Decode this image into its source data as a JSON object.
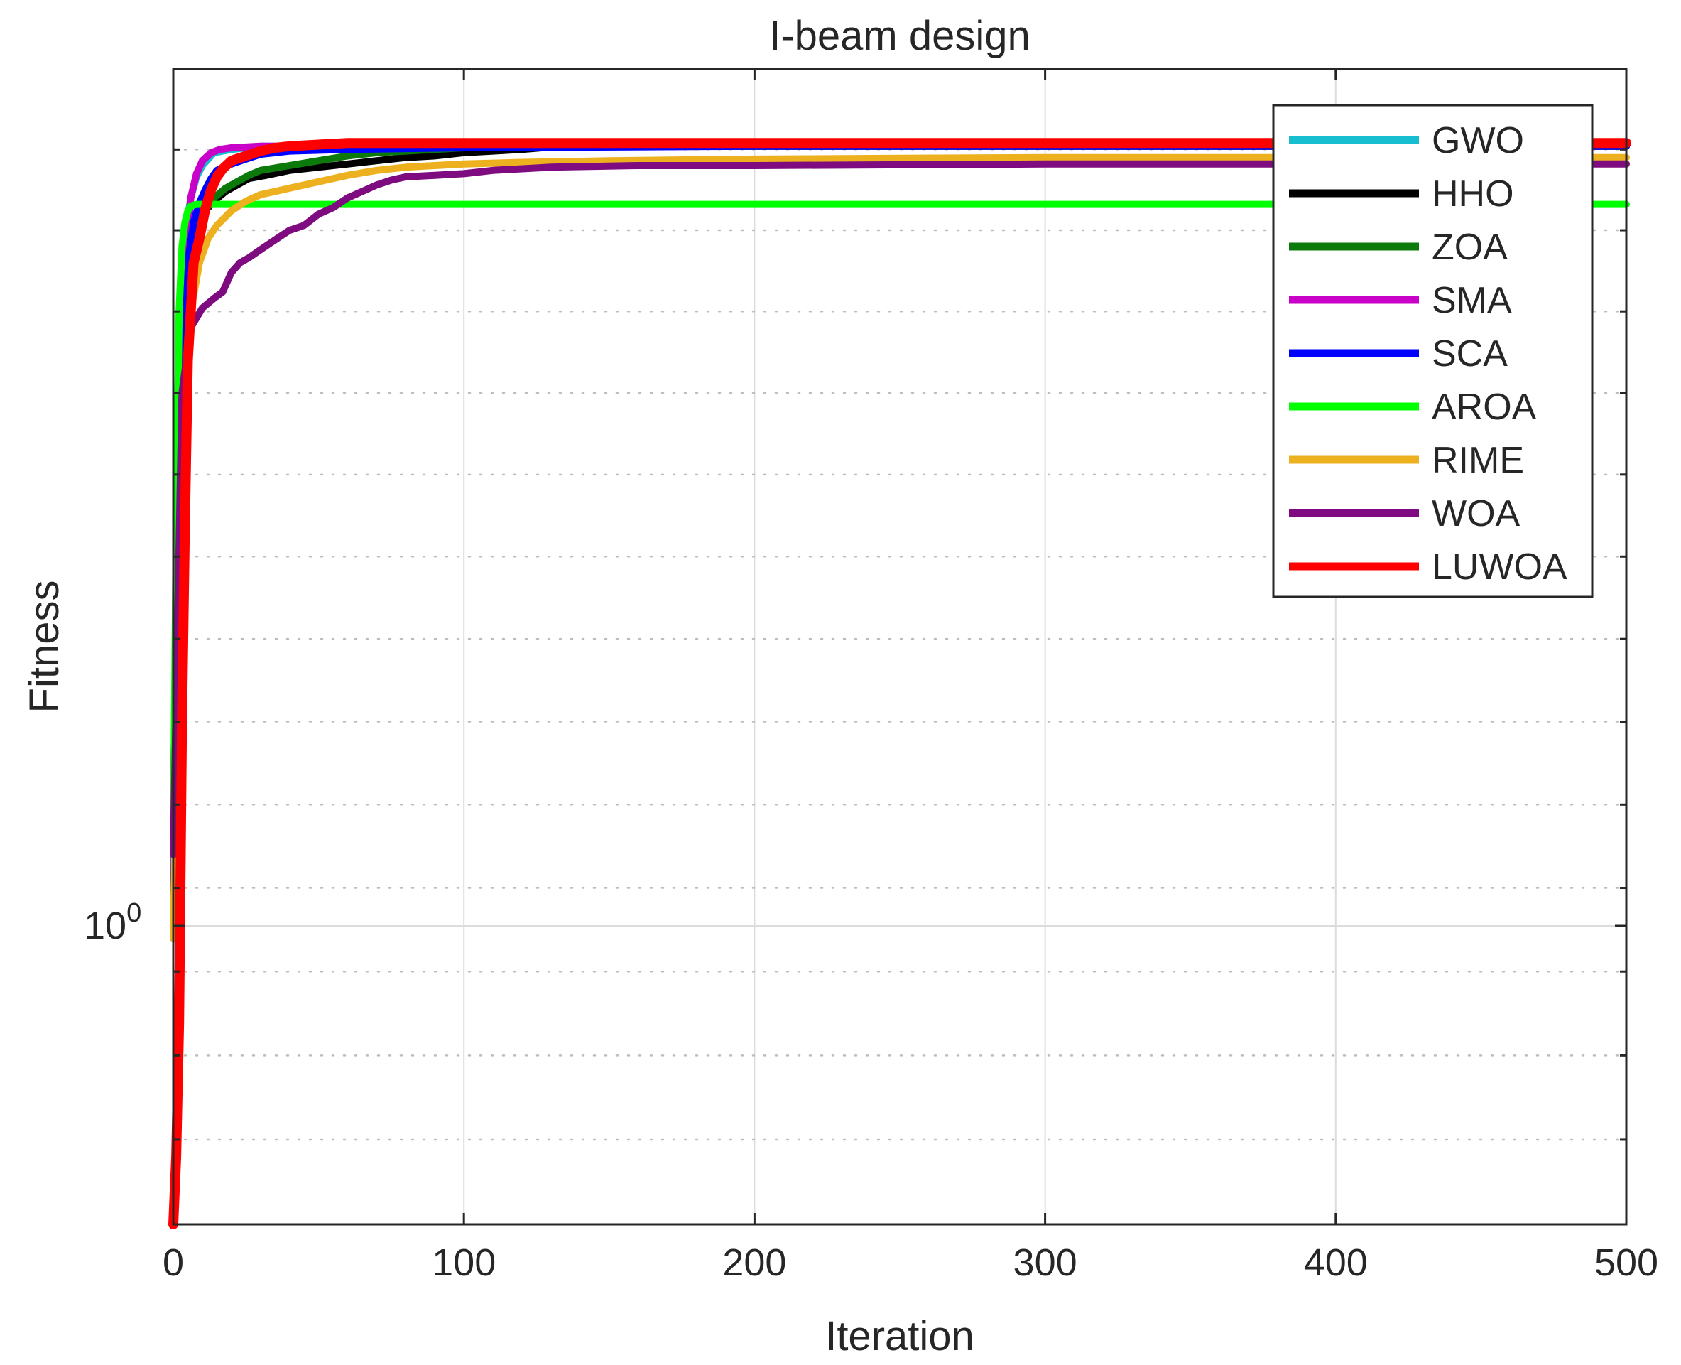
{
  "chart_data": {
    "type": "line",
    "title": "I-beam design",
    "xlabel": "Iteration",
    "ylabel": "Fitness",
    "xlim": [
      0,
      500
    ],
    "ylim": [
      0.0128,
      0.0135
    ],
    "yscale": "log",
    "grid": true,
    "legend_position": "top-right",
    "x_ticks": [
      0,
      100,
      200,
      300,
      400,
      500
    ],
    "x_tick_labels": [
      "0",
      "100",
      "200",
      "300",
      "400",
      "500"
    ],
    "y_tick_labels": [
      {
        "base": "10",
        "exp": "0",
        "value": 1.0
      }
    ],
    "series": [
      {
        "name": "GWO",
        "color": "#17BECF",
        "x": [
          0,
          2,
          4,
          6,
          8,
          10,
          14,
          20,
          30,
          50,
          100,
          200,
          500
        ],
        "y": [
          0.01305,
          0.01325,
          0.013397,
          0.01342,
          0.013433,
          0.01344,
          0.013448,
          0.01345,
          0.013452,
          0.013452,
          0.013453,
          0.013453,
          0.013453
        ]
      },
      {
        "name": "HHO",
        "color": "#000000",
        "x": [
          0,
          3,
          5,
          8,
          10,
          14,
          18,
          22,
          26,
          32,
          40,
          50,
          60,
          70,
          80,
          90,
          100,
          110,
          120,
          133,
          200,
          500
        ],
        "y": [
          0.01297,
          0.0133,
          0.01337,
          0.013395,
          0.01341,
          0.013418,
          0.013424,
          0.013428,
          0.013432,
          0.013434,
          0.013437,
          0.013439,
          0.013441,
          0.013443,
          0.013445,
          0.013446,
          0.013448,
          0.013449,
          0.01345,
          0.013452,
          0.013452,
          0.013452
        ]
      },
      {
        "name": "ZOA",
        "color": "#0B7A0B",
        "x": [
          0,
          3,
          5,
          8,
          10,
          14,
          18,
          22,
          26,
          30,
          40,
          50,
          60,
          70,
          80,
          90,
          100,
          150,
          500
        ],
        "y": [
          0.01297,
          0.0133,
          0.01337,
          0.013395,
          0.01341,
          0.01342,
          0.013426,
          0.01343,
          0.013434,
          0.013437,
          0.01344,
          0.013443,
          0.013446,
          0.013448,
          0.013449,
          0.01345,
          0.013451,
          0.013452,
          0.013452
        ]
      },
      {
        "name": "SMA",
        "color": "#C800C8",
        "x": [
          0,
          2,
          4,
          6,
          8,
          10,
          13,
          16,
          20,
          30,
          40,
          50,
          100,
          500
        ],
        "y": [
          0.01305,
          0.01325,
          0.01338,
          0.01342,
          0.013435,
          0.013443,
          0.013448,
          0.01345,
          0.013451,
          0.013452,
          0.013452,
          0.013453,
          0.013453,
          0.013453
        ]
      },
      {
        "name": "SCA",
        "color": "#0000FF",
        "x": [
          0,
          1,
          3,
          5,
          7,
          9,
          11,
          13,
          15,
          20,
          25,
          30,
          40,
          60,
          100,
          200,
          500
        ],
        "y": [
          0.01297,
          0.01312,
          0.01332,
          0.01338,
          0.013405,
          0.013417,
          0.013425,
          0.013432,
          0.013437,
          0.013441,
          0.013444,
          0.013447,
          0.013449,
          0.01345,
          0.013451,
          0.013452,
          0.013452
        ]
      },
      {
        "name": "AROA",
        "color": "#00FF00",
        "x": [
          0,
          1,
          2,
          3,
          4,
          5,
          6,
          8,
          10,
          500
        ],
        "y": [
          0.01302,
          0.01322,
          0.01335,
          0.01339,
          0.013405,
          0.013412,
          0.013415,
          0.013416,
          0.013416,
          0.013416
        ]
      },
      {
        "name": "RIME",
        "color": "#EDB120",
        "x": [
          0,
          3,
          6,
          9,
          12,
          15,
          20,
          25,
          30,
          40,
          50,
          60,
          70,
          80,
          90,
          100,
          120,
          150,
          200,
          300,
          500
        ],
        "y": [
          0.01297,
          0.01327,
          0.01335,
          0.01338,
          0.013395,
          0.013403,
          0.013412,
          0.013418,
          0.013422,
          0.013426,
          0.01343,
          0.013434,
          0.013437,
          0.013439,
          0.01344,
          0.013441,
          0.013442,
          0.013443,
          0.013444,
          0.013445,
          0.013445
        ]
      },
      {
        "name": "WOA",
        "color": "#7E0C80",
        "x": [
          0,
          3,
          6,
          10,
          14,
          17,
          20,
          23,
          26,
          30,
          35,
          40,
          45,
          50,
          55,
          60,
          65,
          70,
          75,
          80,
          90,
          100,
          110,
          130,
          160,
          200,
          300,
          500
        ],
        "y": [
          0.01302,
          0.0133,
          0.01334,
          0.013352,
          0.013358,
          0.013362,
          0.013374,
          0.01338,
          0.013383,
          0.013388,
          0.013394,
          0.0134,
          0.013403,
          0.01341,
          0.013414,
          0.01342,
          0.013424,
          0.013428,
          0.013431,
          0.013433,
          0.013434,
          0.013435,
          0.013437,
          0.013439,
          0.01344,
          0.01344,
          0.013441,
          0.013441
        ]
      },
      {
        "name": "LUWOA",
        "color": "#FF0000",
        "x": [
          0,
          1,
          2,
          3,
          4,
          5,
          7,
          9,
          11,
          13,
          15,
          17,
          20,
          25,
          30,
          35,
          40,
          50,
          60,
          80,
          120,
          200,
          500
        ],
        "y": [
          0.0128,
          0.01284,
          0.01292,
          0.0131,
          0.01322,
          0.01332,
          0.01338,
          0.013395,
          0.013413,
          0.013425,
          0.013433,
          0.013438,
          0.013443,
          0.013446,
          0.013449,
          0.013451,
          0.013452,
          0.013453,
          0.013454,
          0.013454,
          0.013454,
          0.013454,
          0.013454
        ]
      }
    ]
  }
}
